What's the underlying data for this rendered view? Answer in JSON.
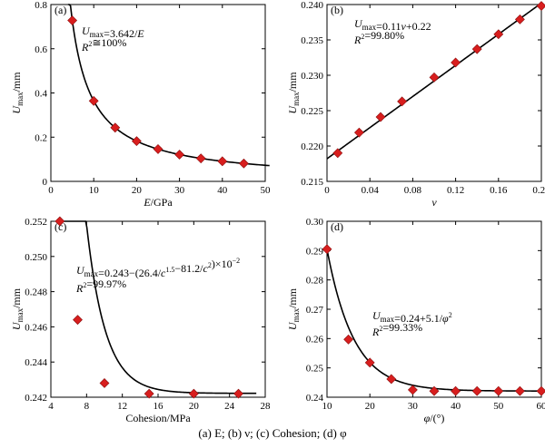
{
  "caption": "(a)  E;  (b)  ν;  (c) Cohesion; (d) φ",
  "chart_data": [
    {
      "type": "scatter",
      "panel": "(a)",
      "xlabel": "E/GPa",
      "xlabel_main": "E",
      "xlabel_unit": "/GPa",
      "ylabel": "Umax/mm",
      "xlim": [
        0,
        50
      ],
      "ylim": [
        0,
        0.8
      ],
      "xticks": [
        0,
        10,
        20,
        30,
        40,
        50
      ],
      "yticks": [
        0,
        0.2,
        0.4,
        0.6,
        0.8
      ],
      "ytick_labels": [
        "0",
        "0.2",
        "0.4",
        "0.6",
        "0.8"
      ],
      "equation": "Umax=3.642/E",
      "r2": "R2≅100%",
      "x": [
        5,
        10,
        15,
        20,
        25,
        30,
        35,
        40,
        45
      ],
      "y": [
        0.728,
        0.364,
        0.243,
        0.182,
        0.146,
        0.121,
        0.104,
        0.091,
        0.081
      ],
      "fit": {
        "kind": "a/x",
        "a": 3.642,
        "x0": 4,
        "x1": 51
      }
    },
    {
      "type": "scatter",
      "panel": "(b)",
      "xlabel": "ν",
      "ylabel": "Umax/mm",
      "xlim": [
        0,
        0.2
      ],
      "ylim": [
        0.215,
        0.24
      ],
      "xticks": [
        0,
        0.04,
        0.08,
        0.12,
        0.16,
        0.2
      ],
      "xtick_labels": [
        "0",
        "0.04",
        "0.08",
        "0.12",
        "0.16",
        "0.20"
      ],
      "yticks": [
        0.215,
        0.22,
        0.225,
        0.23,
        0.235,
        0.24
      ],
      "ytick_labels": [
        "0.215",
        "0.220",
        "0.225",
        "0.230",
        "0.235",
        "0.240"
      ],
      "equation": "Umax=0.11ν+0.22",
      "r2": "R2=99.80%",
      "x": [
        0.01,
        0.03,
        0.05,
        0.07,
        0.1,
        0.12,
        0.14,
        0.16,
        0.18,
        0.2
      ],
      "y": [
        0.219,
        0.2219,
        0.2241,
        0.2263,
        0.2297,
        0.2318,
        0.2337,
        0.2358,
        0.2379,
        0.2398
      ],
      "fit": {
        "kind": "linear",
        "a": 0.11,
        "b": 0.2182,
        "x0": 0,
        "x1": 0.2
      }
    },
    {
      "type": "scatter",
      "panel": "(c)",
      "xlabel": "Cohesion/MPa",
      "ylabel": "Umax/mm",
      "xlim": [
        4,
        28
      ],
      "ylim": [
        0.242,
        0.252
      ],
      "xticks": [
        4,
        8,
        12,
        16,
        20,
        24,
        28
      ],
      "yticks": [
        0.242,
        0.244,
        0.246,
        0.248,
        0.25,
        0.252
      ],
      "ytick_labels": [
        "0.242",
        "0.244",
        "0.246",
        "0.248",
        "0.250",
        "0.252"
      ],
      "equation": "Umax=0.243−(26.4/c1.5−81.2/c2)×10−2",
      "r2": "R2=99.97%",
      "x": [
        5,
        7,
        10,
        15,
        20,
        25
      ],
      "y": [
        0.252,
        0.2464,
        0.2428,
        0.2422,
        0.2422,
        0.2422
      ],
      "fit": {
        "kind": "cohesion",
        "x0": 4.85,
        "x1": 27
      }
    },
    {
      "type": "scatter",
      "panel": "(d)",
      "xlabel": "φ/(°)",
      "ylabel": "Umax/mm",
      "xlim": [
        10,
        60
      ],
      "ylim": [
        0.24,
        0.3
      ],
      "xticks": [
        10,
        20,
        30,
        40,
        50,
        60
      ],
      "yticks": [
        0.24,
        0.25,
        0.26,
        0.27,
        0.28,
        0.29,
        0.3
      ],
      "ytick_labels": [
        "0.24",
        "0.25",
        "0.26",
        "0.27",
        "0.28",
        "0.29",
        "0.30"
      ],
      "equation": "Umax=0.24+5.1/φ2",
      "r2": "R2=99.33%",
      "x": [
        10,
        15,
        20,
        25,
        30,
        35,
        40,
        45,
        50,
        55,
        60
      ],
      "y": [
        0.2905,
        0.2597,
        0.2518,
        0.2462,
        0.2425,
        0.2421,
        0.2421,
        0.2421,
        0.2421,
        0.2421,
        0.2421
      ],
      "fit": {
        "kind": "phi",
        "x0": 10,
        "x1": 60
      }
    }
  ],
  "colors": {
    "marker": "#d81e1e",
    "marker_stroke": "#8a0e0e",
    "curve": "#000000",
    "axis": "#000000"
  }
}
